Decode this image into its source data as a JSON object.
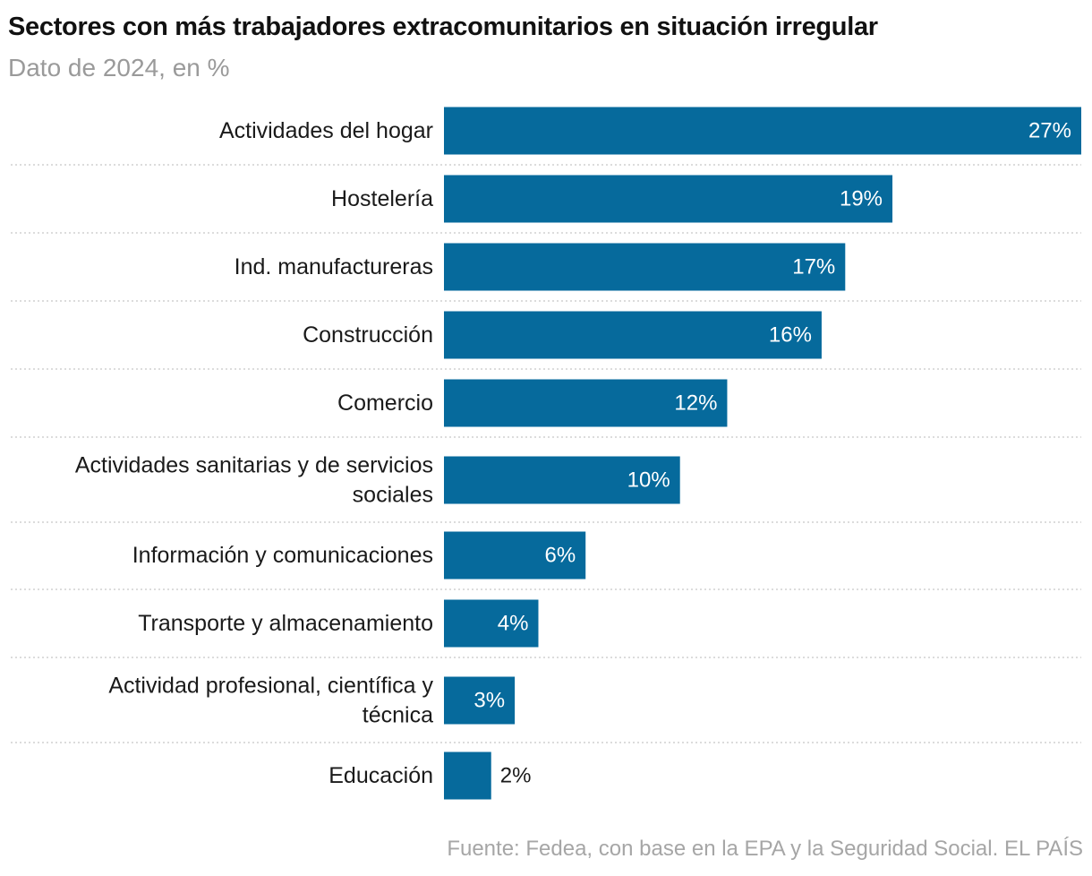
{
  "title": "Sectores con más trabajadores extracomunitarios en situación irregular",
  "subtitle": "Dato de 2024, en %",
  "source": "Fuente: Fedea, con base en la EPA y la Seguridad Social. EL PAÍS",
  "colors": {
    "bar": "#066a9c",
    "label_inside": "#ffffff",
    "label_outside": "#1a1a1a",
    "separator": "#c8c8c8"
  },
  "chart_data": {
    "type": "bar",
    "orientation": "horizontal",
    "categories": [
      "Actividades del hogar",
      "Hostelería",
      "Ind. manufactureras",
      "Construcción",
      "Comercio",
      "Actividades sanitarias y de servicios sociales",
      "Información y comunicaciones",
      "Transporte y almacenamiento",
      "Actividad profesional, científica y técnica",
      "Educación"
    ],
    "category_lines": [
      [
        "Actividades del hogar"
      ],
      [
        "Hostelería"
      ],
      [
        "Ind. manufactureras"
      ],
      [
        "Construcción"
      ],
      [
        "Comercio"
      ],
      [
        "Actividades sanitarias y de servicios",
        "sociales"
      ],
      [
        "Información y comunicaciones"
      ],
      [
        "Transporte y almacenamiento"
      ],
      [
        "Actividad profesional, científica y",
        "técnica"
      ],
      [
        "Educación"
      ]
    ],
    "values": [
      27,
      19,
      17,
      16,
      12,
      10,
      6,
      4,
      3,
      2
    ],
    "value_labels": [
      "27%",
      "19%",
      "17%",
      "16%",
      "12%",
      "10%",
      "6%",
      "4%",
      "3%",
      "2%"
    ],
    "unit": "%",
    "xlim": [
      0,
      27
    ],
    "grid": false,
    "legend": "none"
  }
}
